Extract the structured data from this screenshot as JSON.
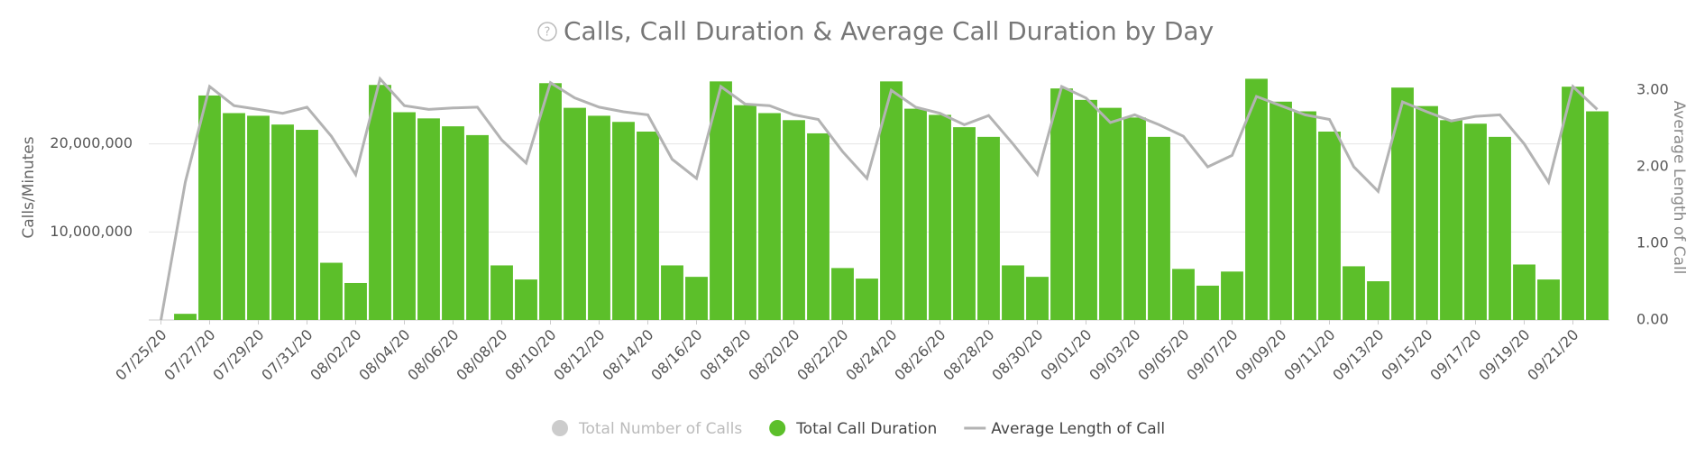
{
  "chart_data": {
    "type": "bar-line",
    "title": "Calls, Call Duration & Average Call Duration by Day",
    "y_label": "Calls/Minutes",
    "y2_label": "Average Length of Call",
    "categories": [
      "07/25/20",
      null,
      "07/27/20",
      null,
      "07/29/20",
      null,
      "07/31/20",
      null,
      "08/02/20",
      null,
      "08/04/20",
      null,
      "08/06/20",
      null,
      "08/08/20",
      null,
      "08/10/20",
      null,
      "08/12/20",
      null,
      "08/14/20",
      null,
      "08/16/20",
      null,
      "08/18/20",
      null,
      "08/20/20",
      null,
      "08/22/20",
      null,
      "08/24/20",
      null,
      "08/26/20",
      null,
      "08/28/20",
      null,
      "08/30/20",
      null,
      "09/01/20",
      null,
      "09/03/20",
      null,
      "09/05/20",
      null,
      "09/07/20",
      null,
      "09/09/20",
      null,
      "09/11/20",
      null,
      "09/13/20",
      null,
      "09/15/20",
      null,
      "09/17/20",
      null,
      "09/19/20",
      null,
      "09/21/20",
      null
    ],
    "series": [
      {
        "name": "Total Number of Calls",
        "color": "#cccccc",
        "visible": false
      },
      {
        "name": "Total Call Duration",
        "color": "#5cbf2a",
        "kind": "bar",
        "values": [
          0,
          700000,
          25500000,
          23500000,
          23200000,
          22200000,
          21600000,
          6500000,
          4200000,
          26700000,
          23600000,
          22900000,
          22000000,
          21000000,
          6200000,
          4600000,
          26900000,
          24100000,
          23200000,
          22500000,
          21400000,
          6200000,
          4900000,
          27100000,
          24400000,
          23500000,
          22700000,
          21200000,
          5900000,
          4700000,
          27100000,
          24000000,
          23300000,
          21900000,
          20800000,
          6200000,
          4900000,
          26300000,
          25000000,
          24100000,
          23000000,
          20800000,
          5800000,
          3900000,
          5500000,
          27400000,
          24800000,
          23700000,
          21400000,
          6100000,
          4400000,
          26400000,
          24300000,
          22700000,
          22300000,
          20800000,
          6300000,
          4600000,
          26500000,
          23700000
        ]
      },
      {
        "name": "Average Length of Call",
        "color": "#b3b3b3",
        "kind": "line",
        "axis": "y2",
        "values": [
          0,
          1.8,
          3.05,
          2.8,
          2.75,
          2.7,
          2.78,
          2.4,
          1.9,
          3.15,
          2.8,
          2.75,
          2.77,
          2.78,
          2.35,
          2.05,
          3.1,
          2.9,
          2.78,
          2.72,
          2.68,
          2.1,
          1.85,
          3.05,
          2.82,
          2.8,
          2.68,
          2.62,
          2.2,
          1.85,
          3.0,
          2.78,
          2.7,
          2.55,
          2.67,
          2.3,
          1.9,
          3.05,
          2.9,
          2.58,
          2.68,
          2.55,
          2.4,
          2.0,
          2.15,
          2.92,
          2.8,
          2.68,
          2.62,
          2.0,
          1.68,
          2.85,
          2.72,
          2.6,
          2.66,
          2.68,
          2.3,
          1.8,
          3.05,
          2.75
        ]
      }
    ],
    "ylim": [
      0,
      30000000
    ],
    "yticks": [
      {
        "value": 10000000,
        "label": "10,000,000"
      },
      {
        "value": 20000000,
        "label": "20,000,000"
      }
    ],
    "y2lim": [
      0,
      3.45
    ],
    "y2ticks": [
      {
        "value": 0,
        "label": "0.00"
      },
      {
        "value": 1,
        "label": "1.00"
      },
      {
        "value": 2,
        "label": "2.00"
      },
      {
        "value": 3,
        "label": "3.00"
      }
    ],
    "grid": true,
    "legend": "bottom"
  }
}
